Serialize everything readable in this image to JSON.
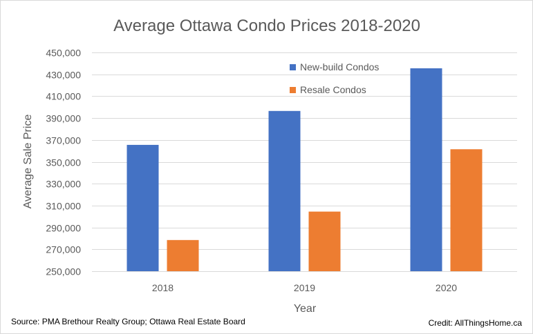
{
  "chart_data": {
    "type": "bar",
    "title": "Average Ottawa Condo Prices 2018-2020",
    "xlabel": "Year",
    "ylabel": "Average Sale Price",
    "categories": [
      "2018",
      "2019",
      "2020"
    ],
    "series": [
      {
        "name": "New-build Condos",
        "color": "#4472c4",
        "values": [
          365500,
          396500,
          435500
        ]
      },
      {
        "name": "Resale Condos",
        "color": "#ed7d31",
        "values": [
          278500,
          304500,
          361500
        ]
      }
    ],
    "ylim": [
      250000,
      450000
    ],
    "yticks": [
      250000,
      270000,
      290000,
      310000,
      330000,
      350000,
      370000,
      390000,
      410000,
      430000,
      450000
    ],
    "ytick_labels": [
      "250,000",
      "270,000",
      "290,000",
      "310,000",
      "330,000",
      "350,000",
      "370,000",
      "390,000",
      "410,000",
      "430,000",
      "450,000"
    ],
    "grid": true,
    "legend_position": "top-right inside plot"
  },
  "footer": {
    "source": "Source: PMA Brethour Realty Group; Ottawa Real Estate Board",
    "credit": "Credit: AllThingsHome.ca"
  },
  "colors": {
    "gridline": "#d9d9d9",
    "text": "#595959"
  }
}
